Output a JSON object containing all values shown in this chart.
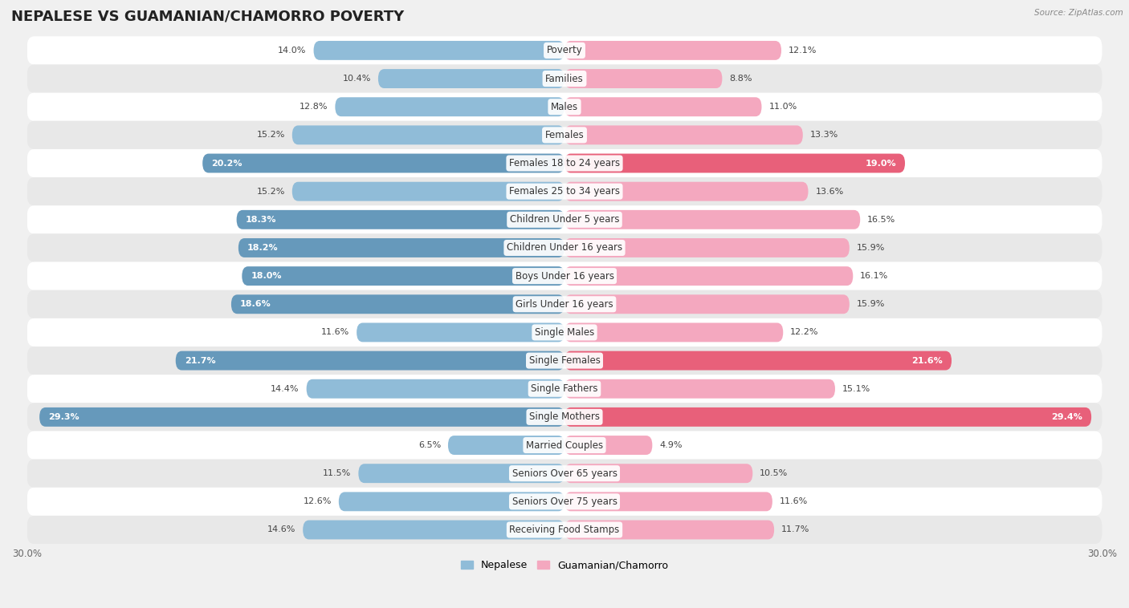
{
  "title": "NEPALESE VS GUAMANIAN/CHAMORRO POVERTY",
  "source": "Source: ZipAtlas.com",
  "categories": [
    "Poverty",
    "Families",
    "Males",
    "Females",
    "Females 18 to 24 years",
    "Females 25 to 34 years",
    "Children Under 5 years",
    "Children Under 16 years",
    "Boys Under 16 years",
    "Girls Under 16 years",
    "Single Males",
    "Single Females",
    "Single Fathers",
    "Single Mothers",
    "Married Couples",
    "Seniors Over 65 years",
    "Seniors Over 75 years",
    "Receiving Food Stamps"
  ],
  "nepalese": [
    14.0,
    10.4,
    12.8,
    15.2,
    20.2,
    15.2,
    18.3,
    18.2,
    18.0,
    18.6,
    11.6,
    21.7,
    14.4,
    29.3,
    6.5,
    11.5,
    12.6,
    14.6
  ],
  "guamanian": [
    12.1,
    8.8,
    11.0,
    13.3,
    19.0,
    13.6,
    16.5,
    15.9,
    16.1,
    15.9,
    12.2,
    21.6,
    15.1,
    29.4,
    4.9,
    10.5,
    11.6,
    11.7
  ],
  "nepalese_color": "#90bcd8",
  "guamanian_color": "#f4a8bf",
  "nepalese_highlight_color": "#6699bb",
  "guamanian_highlight_color": "#e8607a",
  "background_color": "#f0f0f0",
  "row_color_even": "#ffffff",
  "row_color_odd": "#e8e8e8",
  "xlim": 30.0,
  "legend_nepalese": "Nepalese",
  "legend_guamanian": "Guamanian/Chamorro",
  "title_fontsize": 13,
  "label_fontsize": 8.5,
  "value_fontsize": 8,
  "axis_label_fontsize": 8.5
}
